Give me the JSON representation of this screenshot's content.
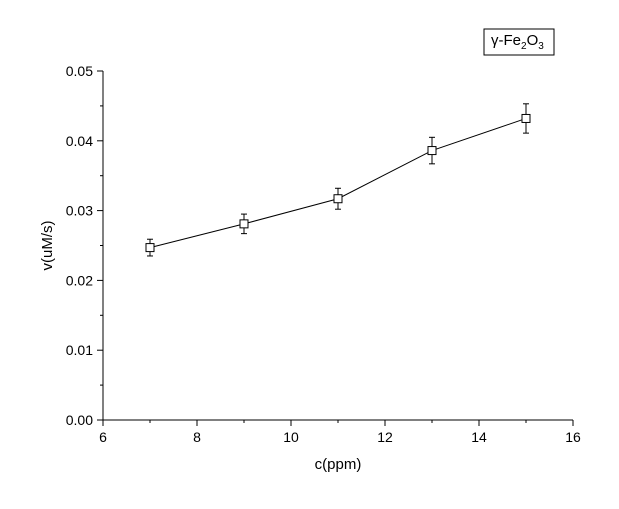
{
  "chart_data": {
    "type": "line",
    "title": "",
    "xlabel": "c(ppm)",
    "ylabel": "v(uM/s)",
    "xlim": [
      6,
      16
    ],
    "ylim": [
      0.0,
      0.05
    ],
    "x_ticks": [
      6,
      8,
      10,
      12,
      14,
      16
    ],
    "x_tick_labels": [
      "6",
      "8",
      "10",
      "12",
      "14",
      "16"
    ],
    "y_ticks": [
      0.0,
      0.01,
      0.02,
      0.03,
      0.04,
      0.05
    ],
    "y_tick_labels": [
      "0.00",
      "0.01",
      "0.02",
      "0.03",
      "0.04",
      "0.05"
    ],
    "grid": false,
    "legend_position": "top-right",
    "series": [
      {
        "name": "",
        "marker": "open-square",
        "x": [
          7,
          9,
          11,
          13,
          15
        ],
        "y": [
          0.0247,
          0.0281,
          0.0317,
          0.0386,
          0.0432
        ],
        "error": [
          0.0012,
          0.0014,
          0.0015,
          0.0019,
          0.0021
        ]
      }
    ],
    "legend": {
      "prefix": "γ-Fe",
      "sub1": "2",
      "mid": "O",
      "sub2": "3"
    },
    "colors": {
      "line": "#000000",
      "background": "#ffffff"
    }
  }
}
